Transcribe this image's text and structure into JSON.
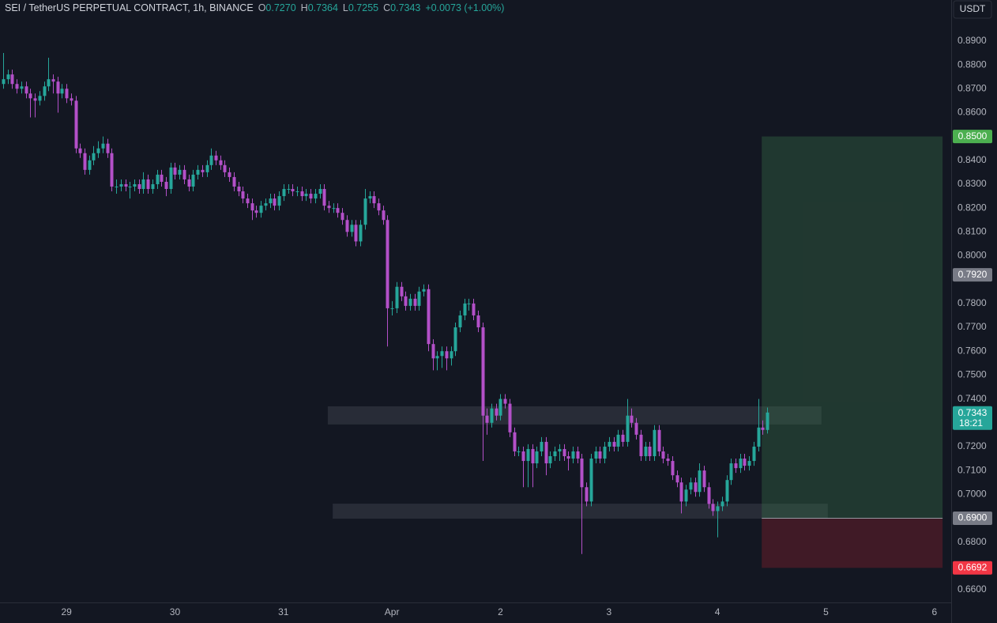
{
  "header": {
    "title": "SEI / TetherUS PERPETUAL CONTRACT, 1h, BINANCE",
    "ohlc": [
      {
        "key": "O",
        "value": "0.7270"
      },
      {
        "key": "H",
        "value": "0.7364"
      },
      {
        "key": "L",
        "value": "0.7255"
      },
      {
        "key": "C",
        "value": "0.7343"
      }
    ],
    "change": "+0.0073 (+1.00%)"
  },
  "currency_button": "USDT",
  "chart_data": {
    "type": "candlestick",
    "up_color": "#26a69a",
    "down_color": "#b350c8",
    "grid": false,
    "xlim": [
      -14.7,
      195.7
    ],
    "ylim": [
      0.6547,
      0.9072
    ],
    "xticks": [
      {
        "value": 0,
        "label": "29"
      },
      {
        "value": 24,
        "label": "30"
      },
      {
        "value": 48,
        "label": "31"
      },
      {
        "value": 72,
        "label": "Apr"
      },
      {
        "value": 96,
        "label": "2"
      },
      {
        "value": 120,
        "label": "3"
      },
      {
        "value": 144,
        "label": "4"
      },
      {
        "value": 168,
        "label": "5"
      },
      {
        "value": 192,
        "label": "6"
      }
    ],
    "yticks": [
      {
        "value": 0.89,
        "label": "0.8900"
      },
      {
        "value": 0.88,
        "label": "0.8800"
      },
      {
        "value": 0.87,
        "label": "0.8700"
      },
      {
        "value": 0.86,
        "label": "0.8600"
      },
      {
        "value": 0.84,
        "label": "0.8400"
      },
      {
        "value": 0.83,
        "label": "0.8300"
      },
      {
        "value": 0.82,
        "label": "0.8200"
      },
      {
        "value": 0.81,
        "label": "0.8100"
      },
      {
        "value": 0.8,
        "label": "0.8000"
      },
      {
        "value": 0.78,
        "label": "0.7800"
      },
      {
        "value": 0.77,
        "label": "0.7700"
      },
      {
        "value": 0.76,
        "label": "0.7600"
      },
      {
        "value": 0.75,
        "label": "0.7500"
      },
      {
        "value": 0.74,
        "label": "0.7400"
      },
      {
        "value": 0.72,
        "label": "0.7200"
      },
      {
        "value": 0.71,
        "label": "0.7100"
      },
      {
        "value": 0.7,
        "label": "0.7000"
      },
      {
        "value": 0.68,
        "label": "0.6800"
      },
      {
        "value": 0.66,
        "label": "0.6600"
      }
    ],
    "x": [
      -14,
      -13,
      -12,
      -11,
      -10,
      -9,
      -8,
      -7,
      -6,
      -5,
      -4,
      -3,
      -2,
      -1,
      0,
      1,
      2,
      3,
      4,
      5,
      6,
      7,
      8,
      9,
      10,
      11,
      12,
      13,
      14,
      15,
      16,
      17,
      18,
      19,
      20,
      21,
      22,
      23,
      24,
      25,
      26,
      27,
      28,
      29,
      30,
      31,
      32,
      33,
      34,
      35,
      36,
      37,
      38,
      39,
      40,
      41,
      42,
      43,
      44,
      45,
      46,
      47,
      48,
      49,
      50,
      51,
      52,
      53,
      54,
      55,
      56,
      57,
      58,
      59,
      60,
      61,
      62,
      63,
      64,
      65,
      66,
      67,
      68,
      69,
      70,
      71,
      72,
      73,
      74,
      75,
      76,
      77,
      78,
      79,
      80,
      81,
      82,
      83,
      84,
      85,
      86,
      87,
      88,
      89,
      90,
      91,
      92,
      93,
      94,
      95,
      96,
      97,
      98,
      99,
      100,
      101,
      102,
      103,
      104,
      105,
      106,
      107,
      108,
      109,
      110,
      111,
      112,
      113,
      114,
      115,
      116,
      117,
      118,
      119,
      120,
      121,
      122,
      123,
      124,
      125,
      126,
      127,
      128,
      129,
      130,
      131,
      132,
      133,
      134,
      135,
      136,
      137,
      138,
      139,
      140,
      141,
      142,
      143,
      144,
      145,
      146,
      147,
      148,
      149,
      150,
      151,
      152,
      153,
      154,
      155
    ],
    "candles": [
      [
        0.872,
        0.885,
        0.87,
        0.874
      ],
      [
        0.874,
        0.878,
        0.872,
        0.876
      ],
      [
        0.876,
        0.878,
        0.87,
        0.872
      ],
      [
        0.872,
        0.874,
        0.868,
        0.87
      ],
      [
        0.87,
        0.873,
        0.868,
        0.871
      ],
      [
        0.871,
        0.873,
        0.866,
        0.868
      ],
      [
        0.868,
        0.87,
        0.858,
        0.866
      ],
      [
        0.866,
        0.868,
        0.858,
        0.865
      ],
      [
        0.865,
        0.869,
        0.863,
        0.867
      ],
      [
        0.867,
        0.873,
        0.865,
        0.871
      ],
      [
        0.871,
        0.883,
        0.869,
        0.874
      ],
      [
        0.874,
        0.876,
        0.868,
        0.873
      ],
      [
        0.873,
        0.875,
        0.86,
        0.868
      ],
      [
        0.868,
        0.872,
        0.866,
        0.87
      ],
      [
        0.87,
        0.872,
        0.864,
        0.866
      ],
      [
        0.866,
        0.868,
        0.863,
        0.865
      ],
      [
        0.865,
        0.867,
        0.843,
        0.845
      ],
      [
        0.845,
        0.847,
        0.841,
        0.843
      ],
      [
        0.843,
        0.845,
        0.834,
        0.836
      ],
      [
        0.836,
        0.842,
        0.834,
        0.84
      ],
      [
        0.84,
        0.846,
        0.838,
        0.843
      ],
      [
        0.843,
        0.848,
        0.841,
        0.845
      ],
      [
        0.845,
        0.85,
        0.843,
        0.847
      ],
      [
        0.847,
        0.849,
        0.841,
        0.843
      ],
      [
        0.843,
        0.845,
        0.827,
        0.829
      ],
      [
        0.829,
        0.832,
        0.826,
        0.829
      ],
      [
        0.829,
        0.832,
        0.827,
        0.83
      ],
      [
        0.83,
        0.832,
        0.827,
        0.829
      ],
      [
        0.829,
        0.831,
        0.824,
        0.829
      ],
      [
        0.829,
        0.832,
        0.827,
        0.83
      ],
      [
        0.83,
        0.832,
        0.826,
        0.828
      ],
      [
        0.828,
        0.835,
        0.826,
        0.832
      ],
      [
        0.832,
        0.834,
        0.826,
        0.828
      ],
      [
        0.828,
        0.832,
        0.826,
        0.83
      ],
      [
        0.83,
        0.836,
        0.828,
        0.834
      ],
      [
        0.834,
        0.836,
        0.829,
        0.831
      ],
      [
        0.831,
        0.833,
        0.825,
        0.828
      ],
      [
        0.828,
        0.839,
        0.826,
        0.837
      ],
      [
        0.837,
        0.839,
        0.832,
        0.834
      ],
      [
        0.834,
        0.838,
        0.832,
        0.836
      ],
      [
        0.836,
        0.838,
        0.83,
        0.832
      ],
      [
        0.832,
        0.834,
        0.827,
        0.829
      ],
      [
        0.829,
        0.836,
        0.827,
        0.834
      ],
      [
        0.834,
        0.838,
        0.832,
        0.836
      ],
      [
        0.836,
        0.838,
        0.833,
        0.835
      ],
      [
        0.835,
        0.84,
        0.833,
        0.838
      ],
      [
        0.838,
        0.845,
        0.836,
        0.842
      ],
      [
        0.842,
        0.844,
        0.838,
        0.84
      ],
      [
        0.84,
        0.842,
        0.836,
        0.838
      ],
      [
        0.838,
        0.84,
        0.833,
        0.835
      ],
      [
        0.835,
        0.837,
        0.831,
        0.833
      ],
      [
        0.833,
        0.835,
        0.827,
        0.829
      ],
      [
        0.829,
        0.831,
        0.825,
        0.827
      ],
      [
        0.827,
        0.829,
        0.822,
        0.824
      ],
      [
        0.824,
        0.826,
        0.82,
        0.822
      ],
      [
        0.822,
        0.824,
        0.815,
        0.819
      ],
      [
        0.819,
        0.821,
        0.816,
        0.818
      ],
      [
        0.818,
        0.823,
        0.816,
        0.821
      ],
      [
        0.821,
        0.824,
        0.819,
        0.822
      ],
      [
        0.822,
        0.826,
        0.82,
        0.824
      ],
      [
        0.824,
        0.826,
        0.819,
        0.821
      ],
      [
        0.821,
        0.827,
        0.819,
        0.825
      ],
      [
        0.825,
        0.83,
        0.823,
        0.828
      ],
      [
        0.828,
        0.83,
        0.826,
        0.828
      ],
      [
        0.828,
        0.83,
        0.825,
        0.827
      ],
      [
        0.827,
        0.829,
        0.825,
        0.827
      ],
      [
        0.827,
        0.829,
        0.823,
        0.825
      ],
      [
        0.825,
        0.828,
        0.823,
        0.826
      ],
      [
        0.826,
        0.828,
        0.822,
        0.824
      ],
      [
        0.824,
        0.828,
        0.822,
        0.826
      ],
      [
        0.826,
        0.83,
        0.824,
        0.828
      ],
      [
        0.828,
        0.83,
        0.819,
        0.821
      ],
      [
        0.821,
        0.823,
        0.818,
        0.82
      ],
      [
        0.82,
        0.822,
        0.818,
        0.82
      ],
      [
        0.82,
        0.822,
        0.816,
        0.818
      ],
      [
        0.818,
        0.82,
        0.813,
        0.815
      ],
      [
        0.815,
        0.817,
        0.808,
        0.81
      ],
      [
        0.81,
        0.815,
        0.808,
        0.813
      ],
      [
        0.813,
        0.815,
        0.804,
        0.806
      ],
      [
        0.806,
        0.815,
        0.804,
        0.813
      ],
      [
        0.813,
        0.828,
        0.811,
        0.824
      ],
      [
        0.824,
        0.827,
        0.822,
        0.825
      ],
      [
        0.825,
        0.827,
        0.82,
        0.822
      ],
      [
        0.822,
        0.824,
        0.817,
        0.819
      ],
      [
        0.819,
        0.821,
        0.813,
        0.815
      ],
      [
        0.815,
        0.817,
        0.762,
        0.778
      ],
      [
        0.778,
        0.781,
        0.775,
        0.778
      ],
      [
        0.778,
        0.789,
        0.776,
        0.787
      ],
      [
        0.787,
        0.789,
        0.781,
        0.783
      ],
      [
        0.783,
        0.785,
        0.777,
        0.779
      ],
      [
        0.779,
        0.784,
        0.777,
        0.782
      ],
      [
        0.782,
        0.784,
        0.777,
        0.779
      ],
      [
        0.779,
        0.787,
        0.777,
        0.785
      ],
      [
        0.785,
        0.788,
        0.783,
        0.786
      ],
      [
        0.786,
        0.788,
        0.76,
        0.763
      ],
      [
        0.763,
        0.765,
        0.752,
        0.757
      ],
      [
        0.757,
        0.76,
        0.752,
        0.758
      ],
      [
        0.758,
        0.762,
        0.753,
        0.76
      ],
      [
        0.76,
        0.762,
        0.752,
        0.757
      ],
      [
        0.757,
        0.762,
        0.754,
        0.76
      ],
      [
        0.76,
        0.772,
        0.758,
        0.77
      ],
      [
        0.77,
        0.777,
        0.768,
        0.775
      ],
      [
        0.775,
        0.782,
        0.773,
        0.78
      ],
      [
        0.78,
        0.782,
        0.777,
        0.78
      ],
      [
        0.78,
        0.782,
        0.773,
        0.775
      ],
      [
        0.775,
        0.777,
        0.768,
        0.77
      ],
      [
        0.77,
        0.772,
        0.714,
        0.733
      ],
      [
        0.733,
        0.736,
        0.725,
        0.73
      ],
      [
        0.73,
        0.738,
        0.728,
        0.736
      ],
      [
        0.736,
        0.738,
        0.731,
        0.733
      ],
      [
        0.733,
        0.742,
        0.731,
        0.74
      ],
      [
        0.74,
        0.742,
        0.736,
        0.738
      ],
      [
        0.738,
        0.74,
        0.724,
        0.726
      ],
      [
        0.726,
        0.728,
        0.716,
        0.718
      ],
      [
        0.718,
        0.72,
        0.716,
        0.718
      ],
      [
        0.718,
        0.72,
        0.703,
        0.714
      ],
      [
        0.714,
        0.721,
        0.703,
        0.719
      ],
      [
        0.719,
        0.721,
        0.703,
        0.713
      ],
      [
        0.713,
        0.72,
        0.711,
        0.718
      ],
      [
        0.718,
        0.724,
        0.716,
        0.722
      ],
      [
        0.722,
        0.724,
        0.708,
        0.713
      ],
      [
        0.713,
        0.718,
        0.711,
        0.716
      ],
      [
        0.716,
        0.72,
        0.714,
        0.718
      ],
      [
        0.718,
        0.721,
        0.714,
        0.719
      ],
      [
        0.719,
        0.721,
        0.714,
        0.716
      ],
      [
        0.716,
        0.718,
        0.71,
        0.715
      ],
      [
        0.715,
        0.72,
        0.713,
        0.718
      ],
      [
        0.718,
        0.72,
        0.713,
        0.715
      ],
      [
        0.715,
        0.717,
        0.675,
        0.703
      ],
      [
        0.703,
        0.705,
        0.695,
        0.697
      ],
      [
        0.697,
        0.717,
        0.695,
        0.715
      ],
      [
        0.715,
        0.72,
        0.713,
        0.718
      ],
      [
        0.718,
        0.72,
        0.713,
        0.715
      ],
      [
        0.715,
        0.722,
        0.713,
        0.72
      ],
      [
        0.72,
        0.724,
        0.718,
        0.722
      ],
      [
        0.722,
        0.724,
        0.718,
        0.72
      ],
      [
        0.72,
        0.727,
        0.718,
        0.725
      ],
      [
        0.725,
        0.727,
        0.72,
        0.722
      ],
      [
        0.722,
        0.74,
        0.72,
        0.733
      ],
      [
        0.733,
        0.736,
        0.728,
        0.73
      ],
      [
        0.73,
        0.732,
        0.723,
        0.725
      ],
      [
        0.725,
        0.727,
        0.714,
        0.716
      ],
      [
        0.716,
        0.722,
        0.714,
        0.72
      ],
      [
        0.72,
        0.722,
        0.714,
        0.716
      ],
      [
        0.716,
        0.729,
        0.714,
        0.727
      ],
      [
        0.727,
        0.729,
        0.716,
        0.718
      ],
      [
        0.718,
        0.72,
        0.713,
        0.715
      ],
      [
        0.715,
        0.717,
        0.712,
        0.714
      ],
      [
        0.714,
        0.716,
        0.706,
        0.708
      ],
      [
        0.708,
        0.71,
        0.703,
        0.705
      ],
      [
        0.705,
        0.707,
        0.692,
        0.697
      ],
      [
        0.697,
        0.704,
        0.695,
        0.702
      ],
      [
        0.702,
        0.707,
        0.7,
        0.705
      ],
      [
        0.705,
        0.707,
        0.699,
        0.701
      ],
      [
        0.701,
        0.713,
        0.699,
        0.71
      ],
      [
        0.71,
        0.712,
        0.701,
        0.703
      ],
      [
        0.703,
        0.705,
        0.694,
        0.696
      ],
      [
        0.696,
        0.698,
        0.691,
        0.693
      ],
      [
        0.693,
        0.697,
        0.682,
        0.695
      ],
      [
        0.695,
        0.699,
        0.693,
        0.697
      ],
      [
        0.697,
        0.708,
        0.695,
        0.706
      ],
      [
        0.706,
        0.715,
        0.704,
        0.713
      ],
      [
        0.713,
        0.715,
        0.709,
        0.711
      ],
      [
        0.711,
        0.717,
        0.709,
        0.715
      ],
      [
        0.715,
        0.717,
        0.71,
        0.712
      ],
      [
        0.712,
        0.716,
        0.71,
        0.714
      ],
      [
        0.714,
        0.722,
        0.712,
        0.72
      ],
      [
        0.72,
        0.74,
        0.718,
        0.728
      ],
      [
        0.728,
        0.731,
        0.725,
        0.727
      ],
      [
        0.727,
        0.7364,
        0.7255,
        0.7343
      ]
    ],
    "zones": [
      {
        "x": [
          57.8,
          167.0
        ],
        "y": [
          0.7293,
          0.7369
        ]
      },
      {
        "x": [
          58.9,
          168.4
        ],
        "y": [
          0.6898,
          0.6961
        ]
      }
    ],
    "position": {
      "x": [
        153.8,
        193.8
      ],
      "target": {
        "value": 0.85,
        "label": "0.8500",
        "color": "#4caf50"
      },
      "entry": {
        "value": 0.69,
        "label": "0.6900",
        "color": "#787b86"
      },
      "stop": {
        "value": 0.6692,
        "label": "0.6692",
        "color": "#f23645"
      }
    },
    "markers": [
      {
        "value": 0.792,
        "label": "0.7920",
        "color": "#787b86"
      }
    ],
    "last_price": {
      "value": 0.7343,
      "label": "0.7343",
      "countdown": "18:21",
      "color": "#26a69a"
    }
  }
}
